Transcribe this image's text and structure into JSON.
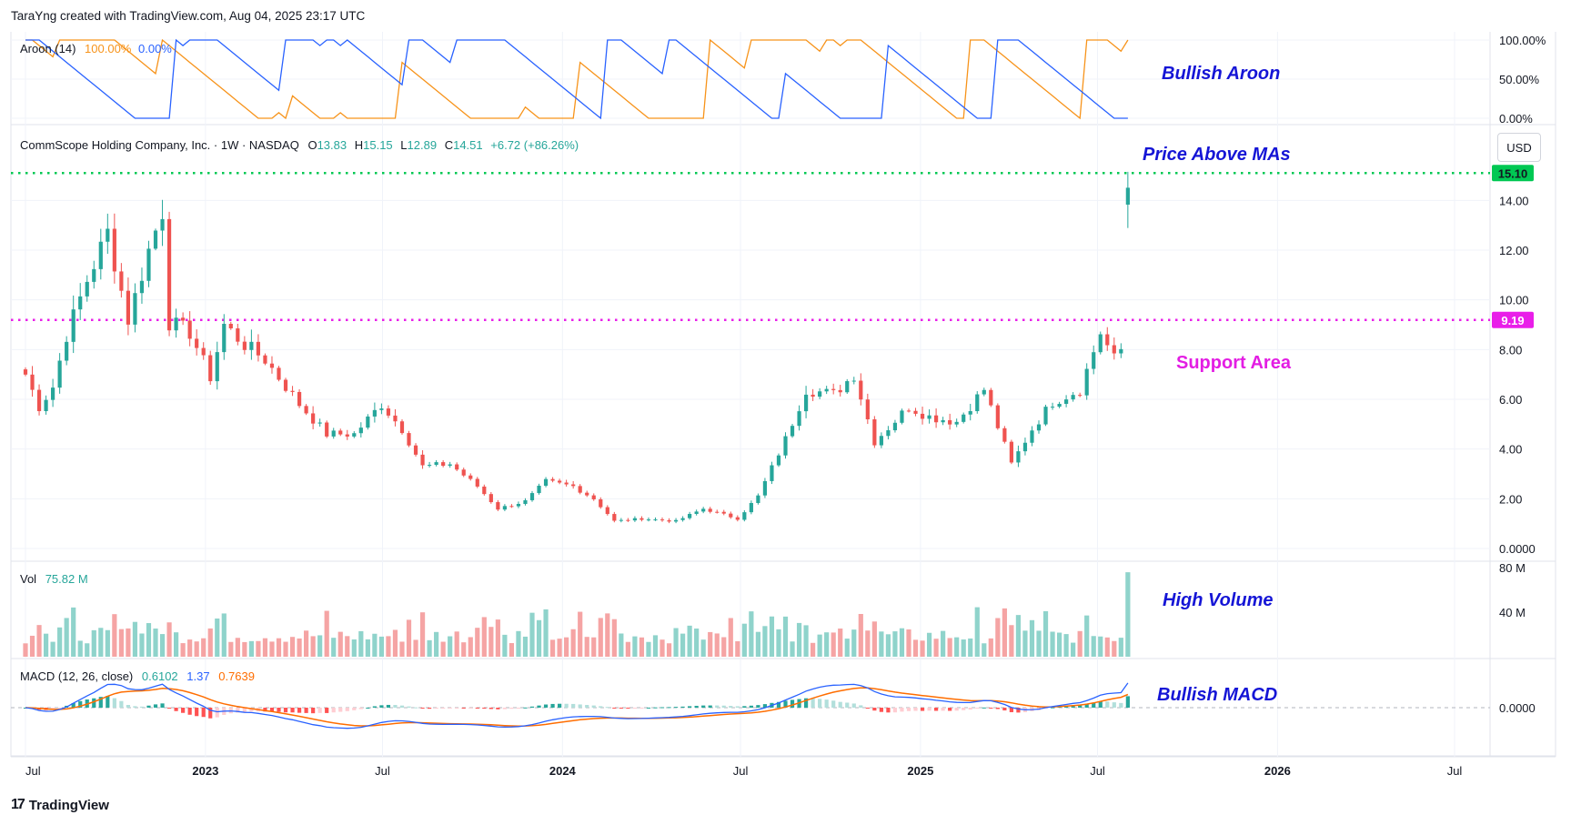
{
  "header": {
    "text": "TaraYng created with TradingView.com, Aug 04, 2025 23:17 UTC"
  },
  "branding": {
    "logo_text": "TradingView"
  },
  "colors": {
    "up": "#26a69a",
    "down": "#ef5350",
    "aroon_up": "#f7931a",
    "aroon_down": "#2962ff",
    "macd": "#2962ff",
    "signal": "#ff6d00",
    "green_line": "#00c853",
    "magenta_line": "#e91ee9",
    "vol_up": "#8fd3cb",
    "vol_down": "#f5a4a4"
  },
  "aroon": {
    "label": "Aroon (14)",
    "up_value": "100.00%",
    "down_value": "0.00%",
    "ticks": [
      "100.00%",
      "50.00%",
      "0.00%"
    ]
  },
  "price": {
    "title": "CommScope Holding Company, Inc. · 1W · NASDAQ",
    "o_label": "O",
    "o": "13.83",
    "h_label": "H",
    "h": "15.15",
    "l_label": "L",
    "l": "12.89",
    "c_label": "C",
    "c": "14.51",
    "change": "+6.72 (+86.26%)",
    "currency": "USD",
    "ticks": [
      "14.00",
      "12.00",
      "10.00",
      "8.00",
      "6.00",
      "4.00",
      "2.00",
      "0.0000"
    ],
    "resistance_label": "15.10",
    "support_label": "9.19"
  },
  "volume": {
    "label": "Vol",
    "value": "75.82 M",
    "ticks": [
      "80 M",
      "40 M"
    ]
  },
  "macd": {
    "label": "MACD (12, 26, close)",
    "hist": "0.6102",
    "macd": "1.37",
    "signal": "0.7639",
    "tick": "0.0000"
  },
  "xaxis": {
    "labels": [
      "Jul",
      "2023",
      "Jul",
      "2024",
      "Jul",
      "2025",
      "Jul",
      "2026",
      "Jul"
    ]
  },
  "annotations": {
    "aroon": "Bullish Aroon",
    "ma": "Price Above MAs",
    "support": "Support Area",
    "volume": "High Volume",
    "macd": "Bullish MACD"
  },
  "chart_data": {
    "type": "candlestick",
    "interval": "1W",
    "close_anchors": [
      [
        "2022-07-01",
        7.0
      ],
      [
        "2022-07-15",
        5.7
      ],
      [
        "2022-07-29",
        6.5
      ],
      [
        "2022-08-12",
        8.6
      ],
      [
        "2022-09-02",
        10.8
      ],
      [
        "2022-09-23",
        12.7
      ],
      [
        "2022-10-14",
        9.2
      ],
      [
        "2022-11-04",
        12.0
      ],
      [
        "2022-11-18",
        13.6
      ],
      [
        "2022-11-25",
        9.1
      ],
      [
        "2022-12-16",
        8.7
      ],
      [
        "2023-01-06",
        6.9
      ],
      [
        "2023-01-20",
        9.0
      ],
      [
        "2023-02-10",
        8.2
      ],
      [
        "2023-03-03",
        7.6
      ],
      [
        "2023-04-07",
        5.8
      ],
      [
        "2023-05-05",
        4.6
      ],
      [
        "2023-06-02",
        4.6
      ],
      [
        "2023-06-30",
        5.8
      ],
      [
        "2023-07-21",
        4.8
      ],
      [
        "2023-08-11",
        3.3
      ],
      [
        "2023-09-08",
        3.4
      ],
      [
        "2023-10-06",
        2.5
      ],
      [
        "2023-10-27",
        1.6
      ],
      [
        "2023-11-24",
        1.9
      ],
      [
        "2023-12-15",
        2.7
      ],
      [
        "2024-01-12",
        2.5
      ],
      [
        "2024-02-02",
        2.0
      ],
      [
        "2024-02-23",
        1.1
      ],
      [
        "2024-03-22",
        1.2
      ],
      [
        "2024-04-26",
        1.1
      ],
      [
        "2024-05-24",
        1.6
      ],
      [
        "2024-06-28",
        1.2
      ],
      [
        "2024-07-19",
        2.1
      ],
      [
        "2024-08-16",
        4.4
      ],
      [
        "2024-09-06",
        6.4
      ],
      [
        "2024-10-04",
        6.2
      ],
      [
        "2024-10-25",
        7.0
      ],
      [
        "2024-11-15",
        4.3
      ],
      [
        "2024-12-20",
        5.7
      ],
      [
        "2025-01-10",
        5.3
      ],
      [
        "2025-02-07",
        5.1
      ],
      [
        "2025-03-07",
        6.4
      ],
      [
        "2025-04-04",
        3.4
      ],
      [
        "2025-04-25",
        4.8
      ],
      [
        "2025-05-16",
        5.9
      ],
      [
        "2025-06-13",
        6.4
      ],
      [
        "2025-07-04",
        8.7
      ],
      [
        "2025-07-18",
        7.6
      ],
      [
        "2025-07-25",
        8.0
      ],
      [
        "2025-08-01",
        14.51
      ]
    ],
    "last_candle": {
      "open": 13.83,
      "high": 15.15,
      "low": 12.89,
      "close": 14.51
    },
    "price_range": [
      0,
      16
    ],
    "levels": [
      {
        "value": 15.1,
        "style": "dotted",
        "color": "green"
      },
      {
        "value": 9.19,
        "style": "dotted",
        "color": "magenta"
      }
    ],
    "volume_range_m": [
      0,
      80
    ],
    "last_volume_m": 75.82,
    "macd_last": {
      "histogram": 0.6102,
      "macd": 1.37,
      "signal": 0.7639
    },
    "aroon_last": {
      "up": 100,
      "down": 0
    }
  }
}
